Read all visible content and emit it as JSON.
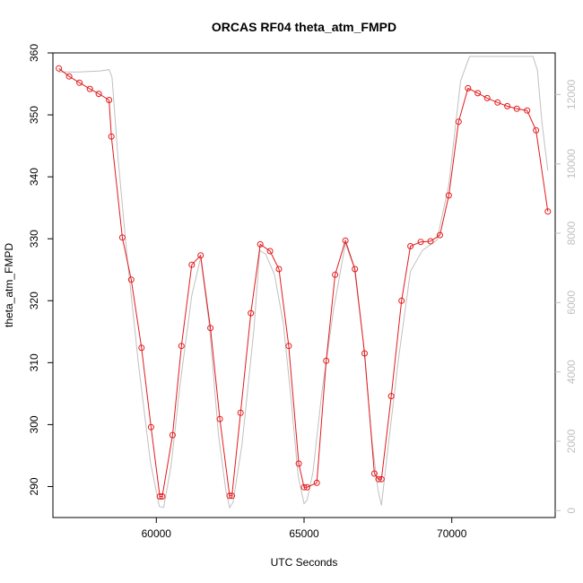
{
  "chart_data": {
    "type": "line",
    "title": "ORCAS RF04 theta_atm_FMPD",
    "xlabel": "UTC Seconds",
    "ylabel": "theta_atm_FMPD",
    "xlim": [
      56500,
      73500
    ],
    "ylim": [
      285,
      360
    ],
    "y2lim": [
      -200,
      13200
    ],
    "x_ticks": [
      60000,
      65000,
      70000
    ],
    "y_ticks": [
      290,
      300,
      310,
      320,
      330,
      340,
      350,
      360
    ],
    "y2_ticks": [
      0,
      2000,
      4000,
      6000,
      8000,
      10000,
      12000
    ],
    "grid": false,
    "series": [
      {
        "color": "#e31a1c",
        "axis": "left",
        "style": "line+points",
        "x": [
          56700,
          57050,
          57400,
          57750,
          58050,
          58400,
          58480,
          58850,
          59150,
          59500,
          59820,
          60120,
          60200,
          60550,
          60850,
          61200,
          61500,
          61830,
          62150,
          62480,
          62560,
          62850,
          63200,
          63520,
          63850,
          64150,
          64480,
          64820,
          65000,
          65100,
          65430,
          65750,
          66050,
          66400,
          66720,
          67050,
          67380,
          67520,
          67620,
          67950,
          68300,
          68600,
          68950,
          69280,
          69600,
          69900,
          70230,
          70550,
          70880,
          71200,
          71550,
          71880,
          72200,
          72550,
          72850,
          73250
        ],
        "y": [
          357.5,
          356.2,
          355.2,
          354.2,
          353.4,
          352.4,
          346.5,
          330.2,
          323.4,
          312.4,
          299.6,
          288.4,
          288.4,
          298.3,
          312.7,
          325.8,
          327.3,
          315.6,
          300.9,
          288.5,
          288.5,
          301.9,
          318.0,
          329.1,
          328.0,
          325.1,
          312.7,
          293.7,
          289.9,
          289.9,
          290.6,
          310.3,
          324.2,
          329.7,
          325.1,
          311.5,
          292.1,
          291.2,
          291.2,
          304.6,
          320.0,
          328.8,
          329.5,
          329.6,
          330.6,
          337.0,
          348.9,
          354.3,
          353.5,
          352.7,
          352.0,
          351.4,
          351.0,
          350.7,
          347.5,
          334.4
        ]
      },
      {
        "color": "#c0c0c0",
        "axis": "right",
        "style": "line",
        "x": [
          56700,
          57400,
          58100,
          58400,
          58500,
          58700,
          59000,
          59400,
          59800,
          60100,
          60250,
          60500,
          60800,
          61200,
          61500,
          61800,
          62100,
          62350,
          62480,
          62600,
          62900,
          63300,
          63500,
          63700,
          64000,
          64300,
          64550,
          64800,
          65000,
          65100,
          65300,
          65600,
          66000,
          66400,
          66700,
          67000,
          67300,
          67500,
          67620,
          67800,
          68200,
          68600,
          69000,
          69500,
          69900,
          70300,
          70600,
          71000,
          71500,
          72000,
          72500,
          72750,
          72900,
          73050,
          73250
        ],
        "y": [
          12650,
          12650,
          12680,
          12720,
          12500,
          10200,
          7400,
          4200,
          1400,
          120,
          90,
          1300,
          3600,
          6200,
          7300,
          5300,
          2200,
          600,
          80,
          250,
          1900,
          5200,
          7500,
          7400,
          6800,
          5400,
          3300,
          1000,
          200,
          300,
          1100,
          3400,
          5800,
          7700,
          7000,
          4900,
          2000,
          600,
          150,
          1500,
          4400,
          6900,
          7500,
          7800,
          9400,
          12400,
          13100,
          13100,
          13100,
          13100,
          13100,
          13100,
          12700,
          11200,
          9800
        ]
      }
    ]
  }
}
